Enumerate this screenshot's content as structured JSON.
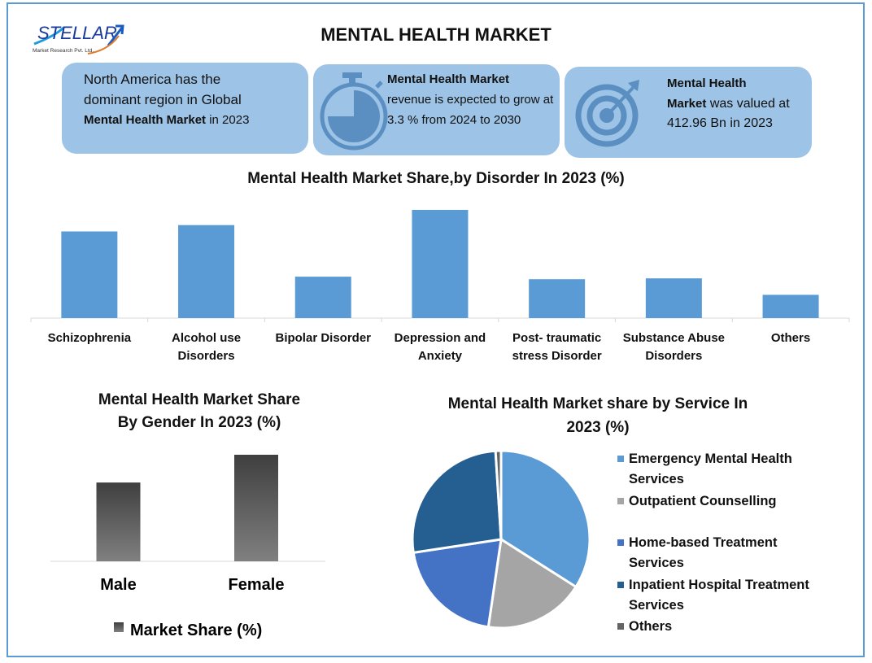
{
  "header": {
    "title": "MENTAL HEALTH MARKET",
    "logo_text": "STELLAR",
    "logo_sub": "Market Research Pvt. Ltd."
  },
  "info_boxes": [
    {
      "line1": "North America has the",
      "line2": "dominant region in Global",
      "bold": "Mental Health Market",
      "rest": " in 2023",
      "icon": "none"
    },
    {
      "bold": "Mental Health Market",
      "rest": "revenue is expected to grow at 3.3 % from 2024 to 2030",
      "icon": "stopwatch-icon"
    },
    {
      "bold": "Mental Health Market",
      "rest": " was valued at 412.96 Bn in 2023",
      "bold1": "Mental Health",
      "bold2": "Market",
      "icon": "target-icon"
    }
  ],
  "colors": {
    "box": "#9dc3e6",
    "icon": "#5b8fc2",
    "bar": "#5b9bd5",
    "frame": "#5b9bd5"
  },
  "chart_data": [
    {
      "type": "bar",
      "title": "Mental Health Market Share,by Disorder In 2023 (%)",
      "categories": [
        "Schizophrenia",
        "Alcohol use Disorders",
        "Bipolar Disorder",
        "Depression and Anxiety",
        "Post- traumatic stress Disorder",
        "Substance Abuse Disorders",
        "Others"
      ],
      "labels": [
        [
          "Schizophrenia"
        ],
        [
          "Alcohol use",
          "Disorders"
        ],
        [
          "Bipolar Disorder"
        ],
        [
          "Depression and",
          "Anxiety"
        ],
        [
          "Post- traumatic",
          "stress Disorder"
        ],
        [
          "Substance Abuse",
          "Disorders"
        ],
        [
          "Others"
        ]
      ],
      "values": [
        20.5,
        22,
        9.8,
        25.6,
        9.2,
        9.4,
        5.5
      ],
      "ylim": [
        0,
        26
      ]
    },
    {
      "type": "bar",
      "title_line1": "Mental Health  Market Share",
      "title_line2": "By Gender In 2023 (%)",
      "categories": [
        "Male",
        "Female"
      ],
      "values": [
        42.5,
        57.5
      ],
      "ylim": [
        0,
        60
      ],
      "legend": "Market Share (%)",
      "legend_position": "bottom"
    },
    {
      "type": "pie",
      "title_line1": "Mental Health Market share by Service In",
      "title_line2": "2023 (%)",
      "series": [
        {
          "name": "Emergency Mental Health Services",
          "line1": "Emergency Mental Health",
          "line2": "Services",
          "value": 34,
          "color": "#5b9bd5"
        },
        {
          "name": "Outpatient Counselling",
          "line1": "Outpatient Counselling",
          "line2": "",
          "value": 18.3,
          "color": "#a5a5a5"
        },
        {
          "name": "Home-based Treatment Services",
          "line1": "Home-based Treatment",
          "line2": "Services",
          "value": 20.3,
          "color": "#4472c4"
        },
        {
          "name": "Inpatient Hospital Treatment Services",
          "line1": "Inpatient Hospital Treatment",
          "line2": "Services",
          "value": 26.4,
          "color": "#255e91"
        },
        {
          "name": "Others",
          "line1": "Others",
          "line2": "",
          "value": 1,
          "color": "#636363"
        }
      ],
      "legend_position": "right"
    }
  ]
}
